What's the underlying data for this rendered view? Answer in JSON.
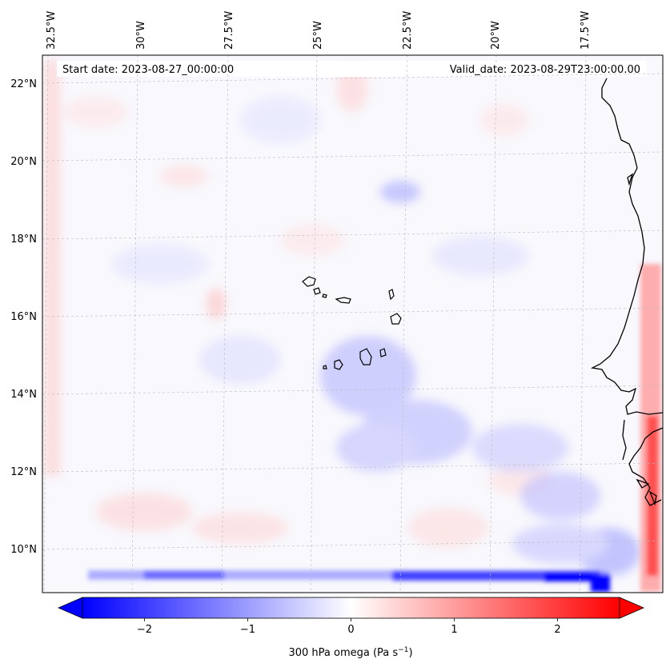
{
  "header": {
    "start_date": "Start date: 2023-08-27_00:00:00",
    "valid_date": "Valid_date: 2023-08-29T23:00:00.00"
  },
  "map": {
    "lon_labels": [
      "32.5°W",
      "30°W",
      "27.5°W",
      "25°W",
      "22.5°W",
      "20°W",
      "17.5°W"
    ],
    "lat_labels": [
      "22°N",
      "20°N",
      "18°N",
      "16°N",
      "14°N",
      "12°N",
      "10°N"
    ],
    "coastline_color": "#000000",
    "gridline_style": "dashed-grey"
  },
  "colorbar": {
    "ticks": [
      "−2",
      "−1",
      "0",
      "1",
      "2"
    ],
    "tick_values": [
      -2,
      -1,
      0,
      1,
      2
    ],
    "range": [
      -2.6,
      2.6
    ],
    "label_prefix": "300 hPa omega (Pa s",
    "label_exp": "−1",
    "label_suffix": ")",
    "cmap": "bwr",
    "color_min": "#0000ff",
    "color_mid": "#ffffff",
    "color_max": "#ff0000",
    "extend": "both"
  }
}
